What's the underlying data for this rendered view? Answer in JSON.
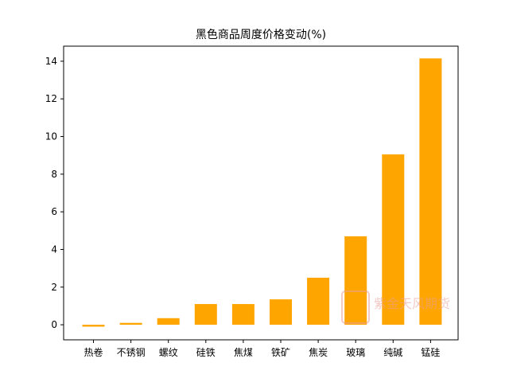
{
  "chart_data": {
    "type": "bar",
    "title": "黑色商品周度价格变动(%)",
    "xlabel": "",
    "ylabel": "",
    "categories": [
      "热卷",
      "不锈钢",
      "螺纹",
      "硅铁",
      "焦煤",
      "铁矿",
      "焦炭",
      "玻璃",
      "纯碱",
      "锰硅"
    ],
    "values": [
      -0.1,
      0.1,
      0.35,
      1.1,
      1.1,
      1.35,
      2.5,
      4.7,
      9.05,
      14.15
    ],
    "ylim": [
      -0.8,
      14.8
    ],
    "yticks": [
      0,
      2,
      4,
      6,
      8,
      10,
      12,
      14
    ],
    "bar_color": "#FFA500",
    "grid": false,
    "legend": "none"
  },
  "watermark": {
    "text": "紫金天风期货",
    "color": "#e8a09a"
  }
}
